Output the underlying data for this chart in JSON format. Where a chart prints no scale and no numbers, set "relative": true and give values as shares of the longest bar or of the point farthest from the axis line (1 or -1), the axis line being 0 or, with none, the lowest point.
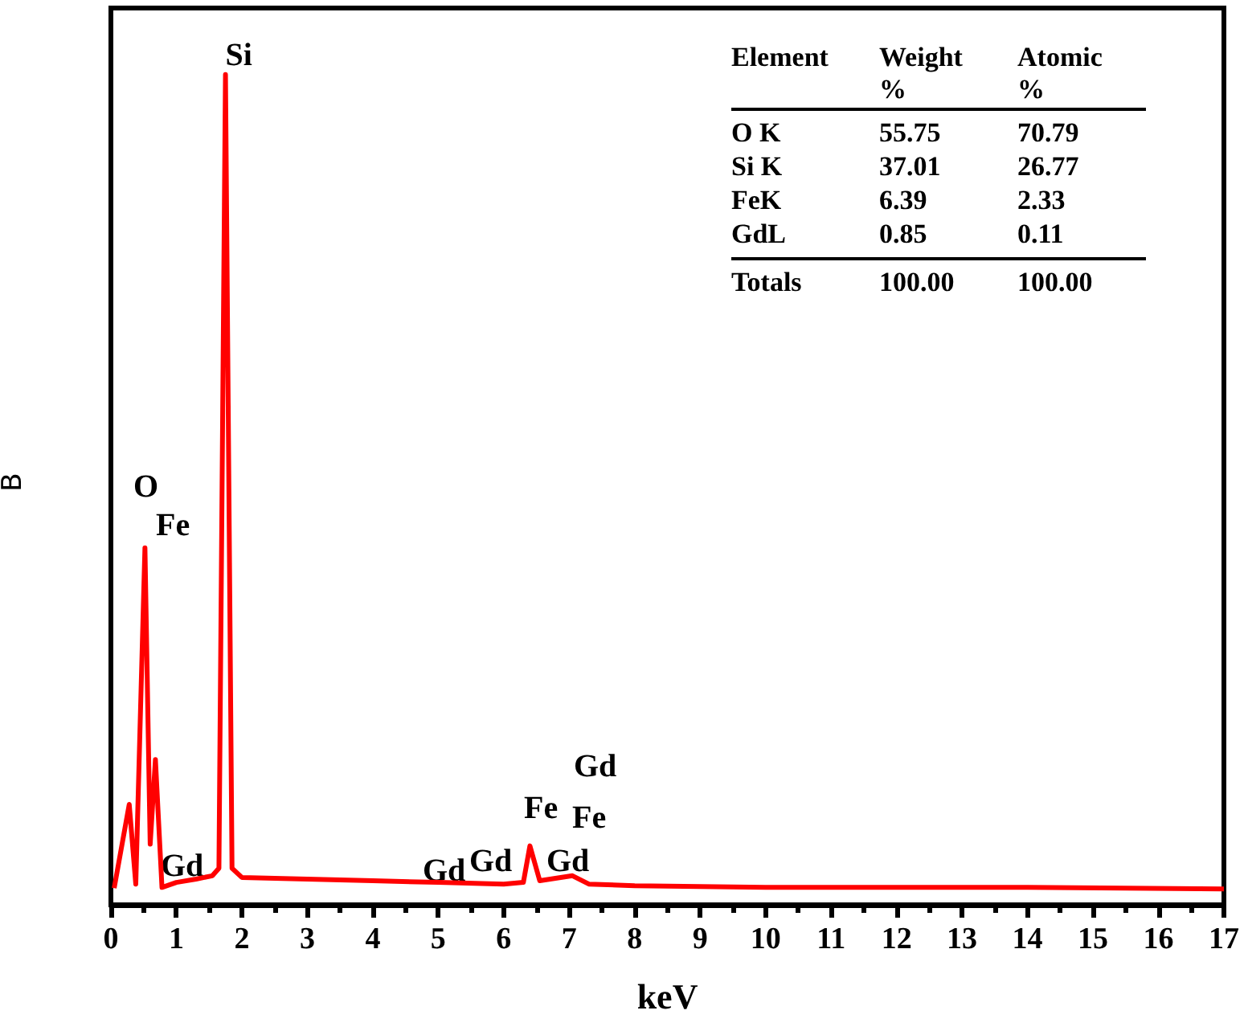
{
  "chart_data": {
    "type": "line",
    "xlabel": "keV",
    "ylabel": "B",
    "relative": true,
    "grid": false,
    "marker": "none",
    "line_style": "solid",
    "xlim": [
      0,
      17
    ],
    "xticks": [
      0,
      1,
      2,
      3,
      4,
      5,
      6,
      7,
      8,
      9,
      10,
      11,
      12,
      13,
      14,
      15,
      16,
      17
    ],
    "series": [
      {
        "color": "#ff0000",
        "x": [
          0.05,
          0.28,
          0.38,
          0.52,
          0.6,
          0.68,
          0.78,
          1.0,
          1.3,
          1.55,
          1.65,
          1.75,
          1.85,
          2.0,
          3,
          4,
          5,
          6,
          6.3,
          6.4,
          6.55,
          7.05,
          7.3,
          8,
          10,
          12,
          14,
          17
        ],
        "values": [
          0.02,
          0.121,
          0.025,
          0.43,
          0.073,
          0.175,
          0.021,
          0.027,
          0.031,
          0.035,
          0.044,
          1,
          0.044,
          0.033,
          0.031,
          0.029,
          0.027,
          0.025,
          0.027,
          0.071,
          0.029,
          0.035,
          0.025,
          0.023,
          0.021,
          0.021,
          0.021,
          0.019
        ]
      }
    ],
    "annotations": [
      {
        "text": "Si",
        "x": 1.75,
        "y": 1.0
      },
      "O",
      "Fe",
      "Gd",
      "Gd",
      "Gd",
      "Fe",
      "Fe",
      "Gd",
      "Gd",
      "Element",
      "Weight %",
      "Atomic %",
      "O K",
      "55.75",
      "70.79",
      "Si K",
      "37.01",
      "26.77",
      "FeK",
      "6.39",
      "2.33",
      "GdL",
      "0.85",
      "0.11",
      "Totals",
      "100.00",
      "100.00"
    ]
  }
}
